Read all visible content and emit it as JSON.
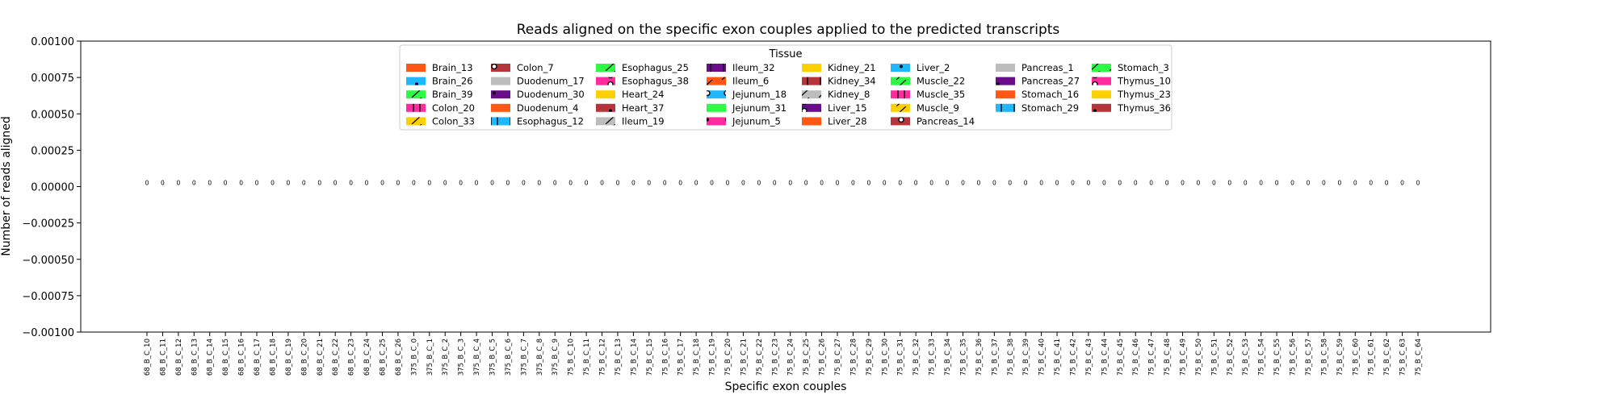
{
  "chart_data": {
    "type": "bar",
    "title": "Reads aligned on the specific exon couples applied to the predicted transcripts",
    "xlabel": "Specific exon couples",
    "ylabel": "Number of reads aligned",
    "ylim": [
      -0.001,
      0.001
    ],
    "yticks": [
      "0.00100",
      "0.00075",
      "0.00050",
      "0.00025",
      "0.00000",
      "−0.00025",
      "−0.00050",
      "−0.00075",
      "−0.00100"
    ],
    "grid": false,
    "legend_title": "Tissue",
    "legend_placement": "top-center",
    "categories": [
      "68_B_C_10",
      "68_B_C_11",
      "68_B_C_12",
      "68_B_C_13",
      "68_B_C_14",
      "68_B_C_15",
      "68_B_C_16",
      "68_B_C_17",
      "68_B_C_18",
      "68_B_C_19",
      "68_B_C_20",
      "68_B_C_21",
      "68_B_C_22",
      "68_B_C_23",
      "68_B_C_24",
      "68_B_C_25",
      "68_B_C_26",
      "375_B_C_0",
      "375_B_C_1",
      "375_B_C_2",
      "375_B_C_3",
      "375_B_C_4",
      "375_B_C_5",
      "375_B_C_6",
      "375_B_C_7",
      "375_B_C_8",
      "375_B_C_9",
      "75_B_C_10",
      "75_B_C_11",
      "75_B_C_12",
      "75_B_C_13",
      "75_B_C_14",
      "75_B_C_15",
      "75_B_C_16",
      "75_B_C_17",
      "75_B_C_18",
      "75_B_C_19",
      "75_B_C_20",
      "75_B_C_21",
      "75_B_C_22",
      "75_B_C_23",
      "75_B_C_24",
      "75_B_C_25",
      "75_B_C_26",
      "75_B_C_27",
      "75_B_C_28",
      "75_B_C_29",
      "75_B_C_30",
      "75_B_C_31",
      "75_B_C_32",
      "75_B_C_33",
      "75_B_C_34",
      "75_B_C_35",
      "75_B_C_36",
      "75_B_C_37",
      "75_B_C_38",
      "75_B_C_39",
      "75_B_C_40",
      "75_B_C_41",
      "75_B_C_42",
      "75_B_C_43",
      "75_B_C_44",
      "75_B_C_45",
      "75_B_C_46",
      "75_B_C_47",
      "75_B_C_48",
      "75_B_C_49",
      "75_B_C_50",
      "75_B_C_51",
      "75_B_C_52",
      "75_B_C_53",
      "75_B_C_54",
      "75_B_C_55",
      "75_B_C_56",
      "75_B_C_57",
      "75_B_C_58",
      "75_B_C_59",
      "75_B_C_60",
      "75_B_C_61",
      "75_B_C_62",
      "75_B_C_63",
      "75_B_C_64"
    ],
    "values": [
      0,
      0,
      0,
      0,
      0,
      0,
      0,
      0,
      0,
      0,
      0,
      0,
      0,
      0,
      0,
      0,
      0,
      0,
      0,
      0,
      0,
      0,
      0,
      0,
      0,
      0,
      0,
      0,
      0,
      0,
      0,
      0,
      0,
      0,
      0,
      0,
      0,
      0,
      0,
      0,
      0,
      0,
      0,
      0,
      0,
      0,
      0,
      0,
      0,
      0,
      0,
      0,
      0,
      0,
      0,
      0,
      0,
      0,
      0,
      0,
      0,
      0,
      0,
      0,
      0,
      0,
      0,
      0,
      0,
      0,
      0,
      0,
      0,
      0,
      0,
      0,
      0,
      0,
      0,
      0,
      0,
      0
    ],
    "bar_label": "0",
    "legend_columns": [
      [
        {
          "name": "Brain_13",
          "color": "#ff5714",
          "pattern": "none"
        },
        {
          "name": "Brain_26",
          "color": "#1fb8ff",
          "pattern": "dot"
        },
        {
          "name": "Brain_39",
          "color": "#2cfa44",
          "pattern": "slash"
        },
        {
          "name": "Colon_20",
          "color": "#ff2b9f",
          "pattern": "bars"
        },
        {
          "name": "Colon_33",
          "color": "#ffd000",
          "pattern": "slash"
        }
      ],
      [
        {
          "name": "Colon_7",
          "color": "#b5353a",
          "pattern": "circle"
        },
        {
          "name": "Duodenum_17",
          "color": "#bdbdbd",
          "pattern": "none"
        },
        {
          "name": "Duodenum_30",
          "color": "#6a0d8a",
          "pattern": "dot"
        },
        {
          "name": "Duodenum_4",
          "color": "#ff5714",
          "pattern": "none"
        },
        {
          "name": "Esophagus_12",
          "color": "#1fb8ff",
          "pattern": "bars"
        }
      ],
      [
        {
          "name": "Esophagus_25",
          "color": "#2cfa44",
          "pattern": "slash"
        },
        {
          "name": "Esophagus_38",
          "color": "#ff2b9f",
          "pattern": "circle"
        },
        {
          "name": "Heart_24",
          "color": "#ffd000",
          "pattern": "none"
        },
        {
          "name": "Heart_37",
          "color": "#b5353a",
          "pattern": "dot"
        },
        {
          "name": "Ileum_19",
          "color": "#bdbdbd",
          "pattern": "slash"
        }
      ],
      [
        {
          "name": "Ileum_32",
          "color": "#6a0d8a",
          "pattern": "bars"
        },
        {
          "name": "Ileum_6",
          "color": "#ff5714",
          "pattern": "slash"
        },
        {
          "name": "Jejunum_18",
          "color": "#1fb8ff",
          "pattern": "circle"
        },
        {
          "name": "Jejunum_31",
          "color": "#2cfa44",
          "pattern": "none"
        },
        {
          "name": "Jejunum_5",
          "color": "#ff2b9f",
          "pattern": "dot"
        }
      ],
      [
        {
          "name": "Kidney_21",
          "color": "#ffd000",
          "pattern": "none"
        },
        {
          "name": "Kidney_34",
          "color": "#b5353a",
          "pattern": "bars"
        },
        {
          "name": "Kidney_8",
          "color": "#bdbdbd",
          "pattern": "slash"
        },
        {
          "name": "Liver_15",
          "color": "#6a0d8a",
          "pattern": "circle"
        },
        {
          "name": "Liver_28",
          "color": "#ff5714",
          "pattern": "none"
        }
      ],
      [
        {
          "name": "Liver_2",
          "color": "#1fb8ff",
          "pattern": "dot"
        },
        {
          "name": "Muscle_22",
          "color": "#2cfa44",
          "pattern": "slash"
        },
        {
          "name": "Muscle_35",
          "color": "#ff2b9f",
          "pattern": "bars"
        },
        {
          "name": "Muscle_9",
          "color": "#ffd000",
          "pattern": "slash"
        },
        {
          "name": "Pancreas_14",
          "color": "#b5353a",
          "pattern": "circle"
        }
      ],
      [
        {
          "name": "Pancreas_1",
          "color": "#bdbdbd",
          "pattern": "none"
        },
        {
          "name": "Pancreas_27",
          "color": "#6a0d8a",
          "pattern": "dot"
        },
        {
          "name": "Stomach_16",
          "color": "#ff5714",
          "pattern": "none"
        },
        {
          "name": "Stomach_29",
          "color": "#1fb8ff",
          "pattern": "bars"
        }
      ],
      [
        {
          "name": "Stomach_3",
          "color": "#2cfa44",
          "pattern": "slash"
        },
        {
          "name": "Thymus_10",
          "color": "#ff2b9f",
          "pattern": "circle"
        },
        {
          "name": "Thymus_23",
          "color": "#ffd000",
          "pattern": "none"
        },
        {
          "name": "Thymus_36",
          "color": "#b5353a",
          "pattern": "dot"
        }
      ]
    ]
  }
}
